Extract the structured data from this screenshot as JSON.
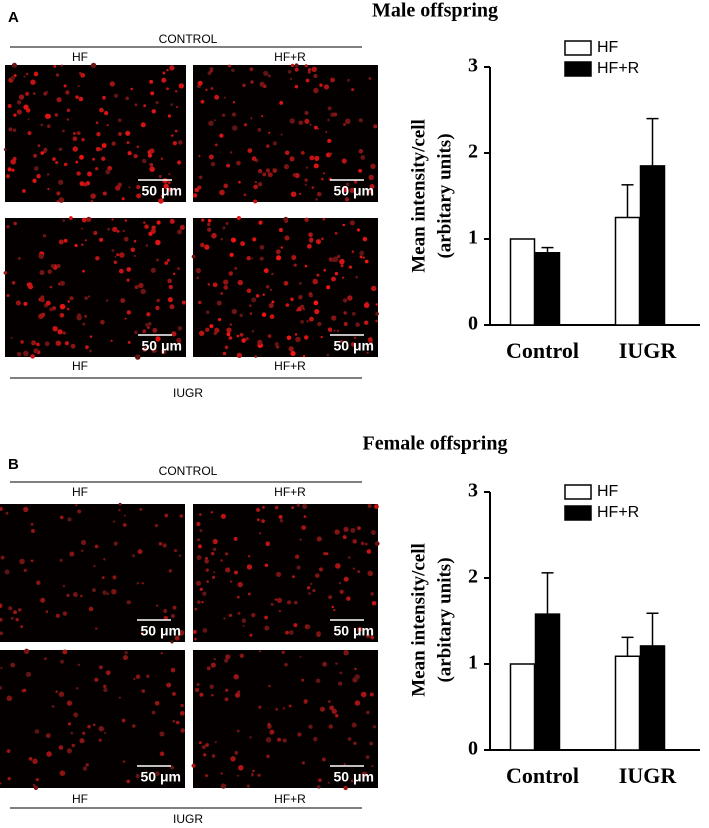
{
  "panels": [
    {
      "label": "A",
      "title": "Male offspring",
      "top_group": "CONTROL",
      "bottom_group": "IUGR",
      "image_labels": [
        "HF",
        "HF+R",
        "HF",
        "HF+R"
      ],
      "scale_bar": "50 μm"
    },
    {
      "label": "B",
      "title": "Female offspring",
      "top_group": "CONTROL",
      "bottom_group": "IUGR",
      "image_labels": [
        "HF",
        "HF+R",
        "HF",
        "HF+R"
      ],
      "scale_bar": "50 μm"
    }
  ],
  "chart_data": [
    {
      "type": "bar",
      "ylabel": [
        "Mean intensity/cell",
        "(arbitary units)"
      ],
      "categories": [
        "Control",
        "IUGR"
      ],
      "series": [
        {
          "name": "HF",
          "color": "#ffffff",
          "values": [
            1.0,
            1.25
          ],
          "errors": [
            0,
            0.38
          ]
        },
        {
          "name": "HF+R",
          "color": "#000000",
          "values": [
            0.84,
            1.85
          ],
          "errors": [
            0.06,
            0.55
          ]
        }
      ],
      "ylim": [
        0,
        3
      ],
      "yticks": [
        0,
        1,
        2,
        3
      ],
      "legend": "top-right"
    },
    {
      "type": "bar",
      "ylabel": [
        "Mean intensity/cell",
        "(arbitary units)"
      ],
      "categories": [
        "Control",
        "IUGR"
      ],
      "series": [
        {
          "name": "HF",
          "color": "#ffffff",
          "values": [
            1.0,
            1.09
          ],
          "errors": [
            0,
            0.22
          ]
        },
        {
          "name": "HF+R",
          "color": "#000000",
          "values": [
            1.58,
            1.21
          ],
          "errors": [
            0.48,
            0.38
          ]
        }
      ],
      "ylim": [
        0,
        3
      ],
      "yticks": [
        0,
        1,
        2,
        3
      ],
      "legend": "top-right"
    }
  ]
}
